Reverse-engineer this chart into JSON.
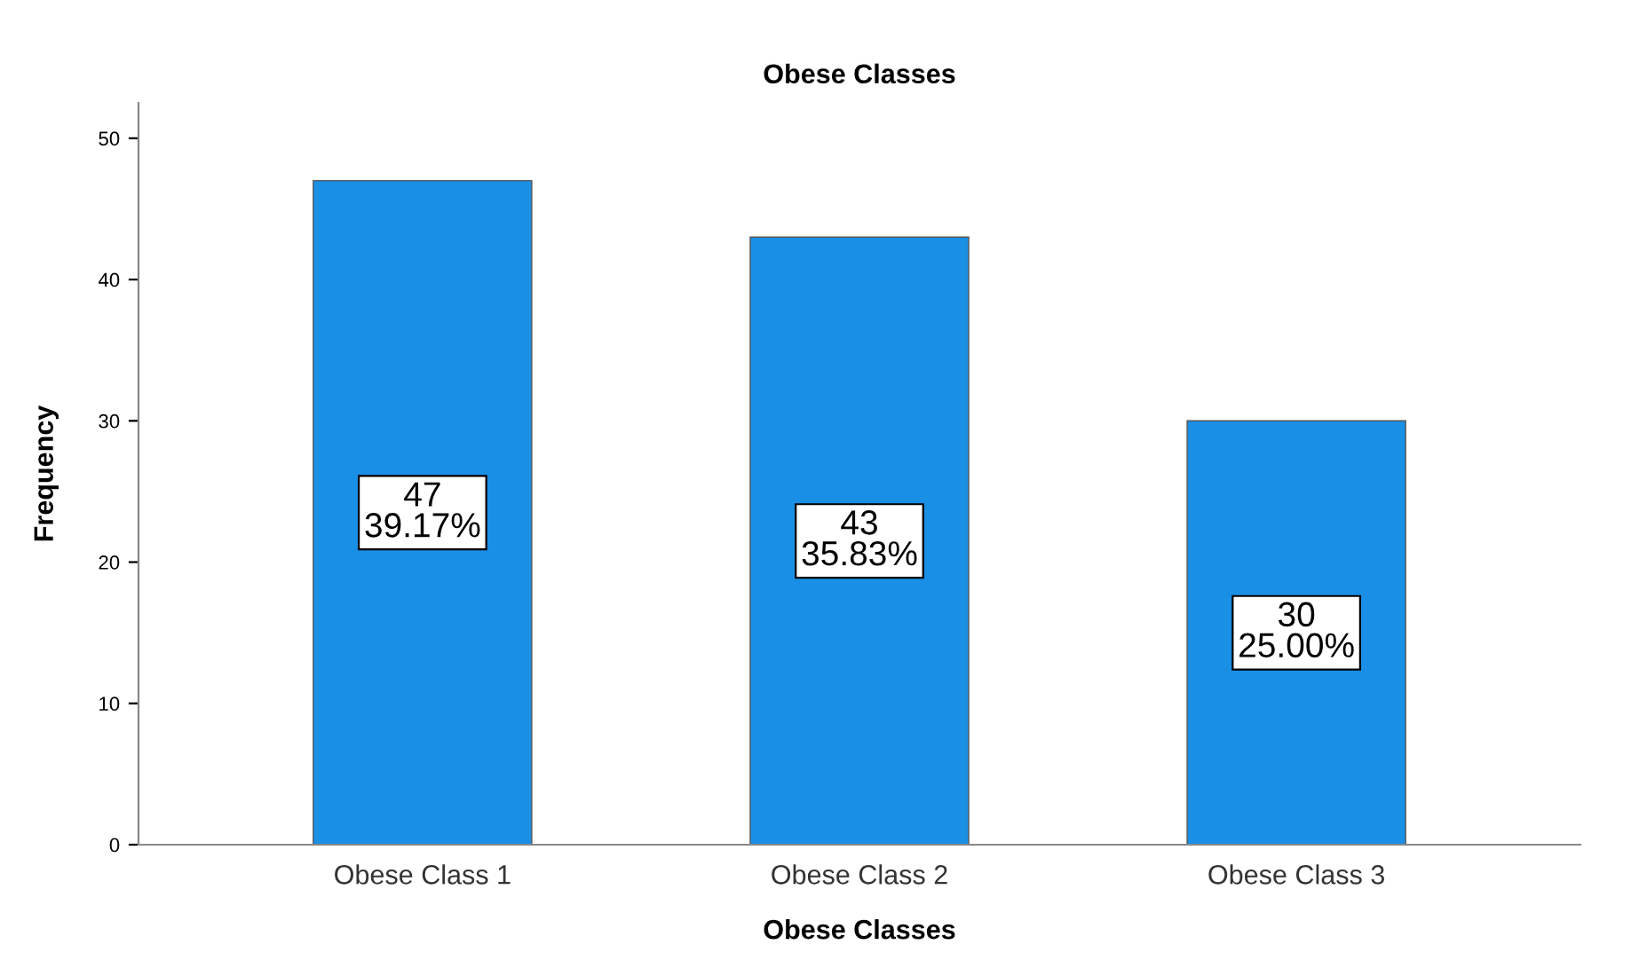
{
  "chart_data": {
    "type": "bar",
    "title": "Obese Classes",
    "xlabel": "Obese Classes",
    "ylabel": "Frequency",
    "categories": [
      "Obese Class 1",
      "Obese Class 2",
      "Obese Class 3"
    ],
    "values": [
      47,
      43,
      30
    ],
    "color": "#1a8fe6",
    "value_labels": [
      "47\n39.17%",
      "43\n35.83%",
      "30\n25.00%"
    ],
    "ylim": [
      0,
      52.5
    ],
    "yticks": [
      0,
      10,
      20,
      30,
      40,
      50
    ],
    "grid": false
  }
}
